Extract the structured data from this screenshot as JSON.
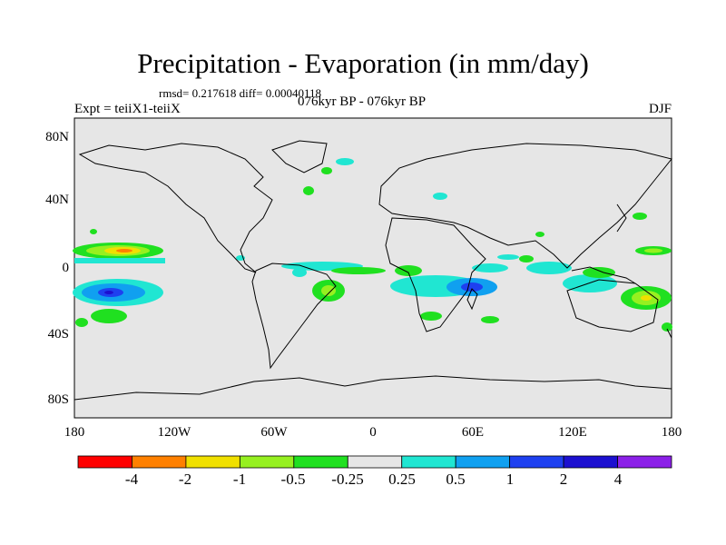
{
  "title": "Precipitation - Evaporation (in mm/day)",
  "stats": "rmsd= 0.217618 diff= 0.00040118",
  "experiment": "Expt = teiiX1-teiiX",
  "period": "076kyr BP - 076kyr BP",
  "season": "DJF",
  "y_ticks": [
    "80N",
    "40N",
    "0",
    "40S",
    "80S"
  ],
  "x_ticks": [
    "180",
    "120W",
    "60W",
    "0",
    "60E",
    "120E",
    "180"
  ],
  "colorbar": {
    "labels": [
      "-4",
      "-2",
      "-1",
      "-0.5",
      "-0.25",
      "0.25",
      "0.5",
      "1",
      "2",
      "4"
    ],
    "colors": [
      "#ff0000",
      "#ff8000",
      "#f0e000",
      "#96f020",
      "#20e020",
      "#e6e6e6",
      "#20e6d2",
      "#10a0f0",
      "#1e40f0",
      "#1c10d0",
      "#8c20e8"
    ]
  },
  "map_colors": {
    "ocean_land": "#e6e6e6",
    "coast": "#000000"
  }
}
